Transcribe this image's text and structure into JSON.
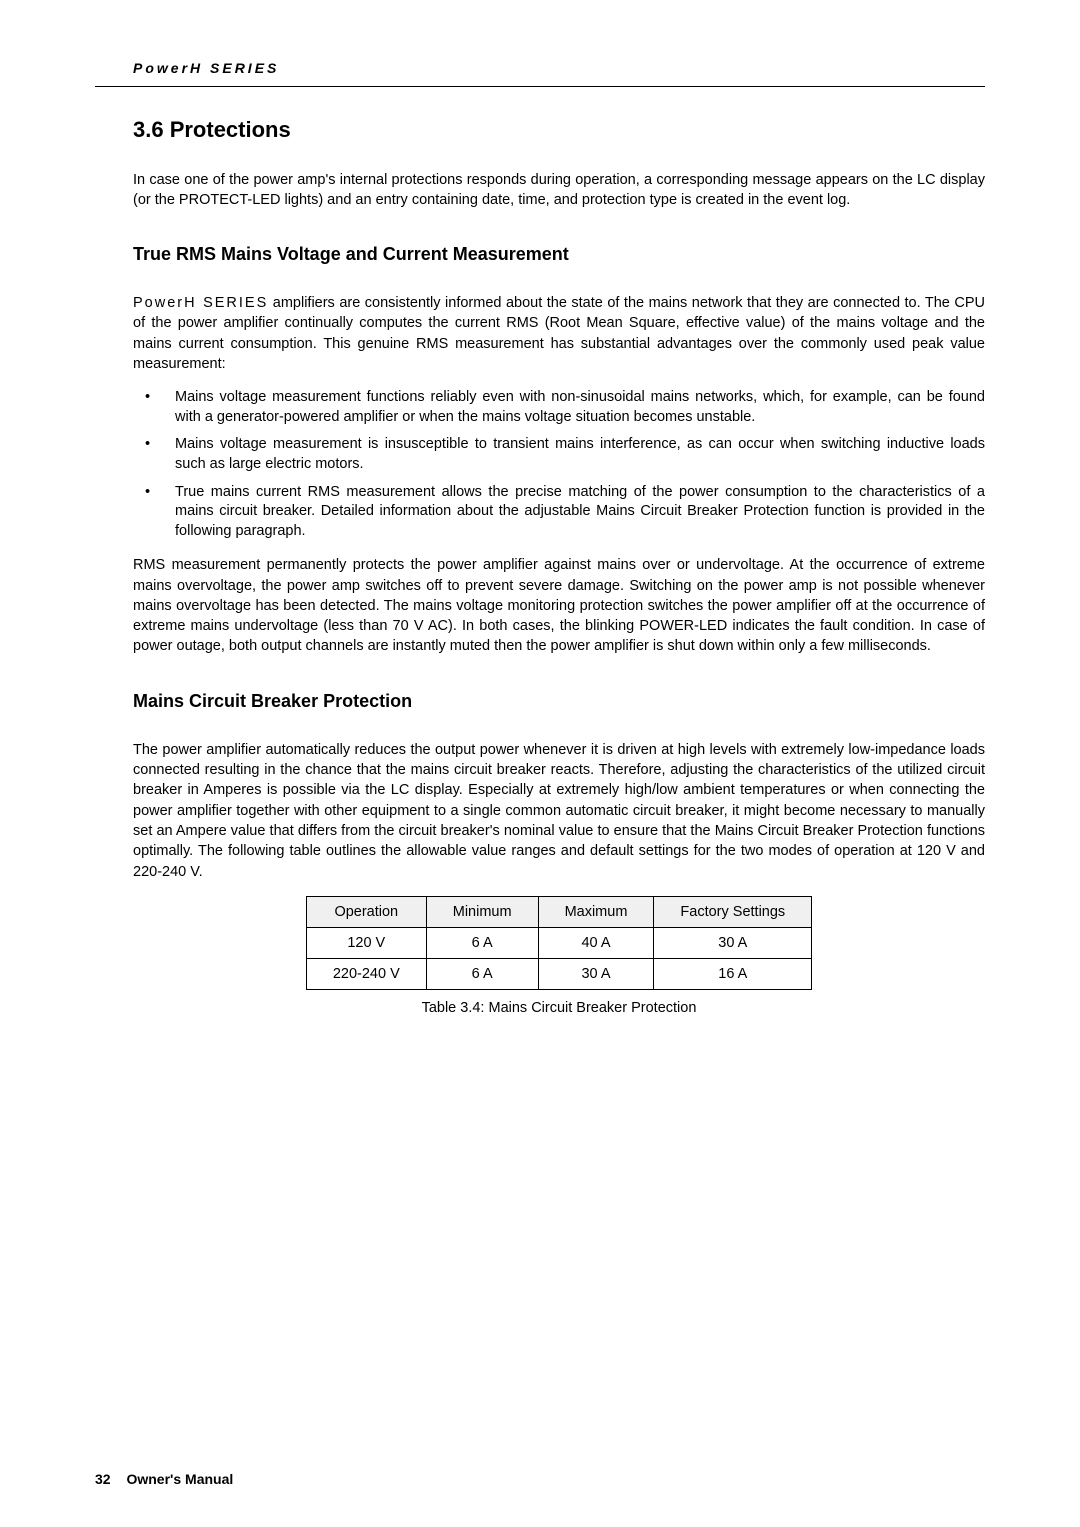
{
  "header": {
    "brand": "PowerH SERIES"
  },
  "section": {
    "title": "3.6 Protections",
    "intro": "In case one of the power amp's internal protections responds during operation, a corresponding message appears on the LC display (or the PROTECT-LED lights) and an entry containing date, time, and protection type is created in the event log."
  },
  "rms": {
    "title": "True RMS Mains Voltage and Current Measurement",
    "para1_prefix": "PowerH SERIES",
    "para1_rest": " amplifiers are consistently informed about the state of the mains network that they are connected to. The CPU of the power amplifier continually computes the current RMS (Root Mean Square, effective value) of the mains voltage and the mains current consumption. This genuine RMS measurement has substantial advantages over the commonly used peak value measurement:",
    "bullets": {
      "b1": "Mains voltage measurement functions reliably even with non-sinusoidal mains networks, which, for example, can be found with a generator-powered amplifier or when the mains voltage situation becomes unstable.",
      "b2": "Mains voltage measurement is insusceptible to transient mains interference, as can occur when switching inductive loads such as large electric motors.",
      "b3": "True mains current RMS measurement allows the precise matching of the power consumption to the characteristics of a mains circuit breaker. Detailed information about the adjustable Mains Circuit Breaker Protection function is provided in the following paragraph."
    },
    "para2": "RMS measurement permanently protects the power amplifier against mains over or undervoltage. At the occurrence of extreme mains overvoltage, the power amp switches off to prevent severe damage. Switching on the power amp is not possible whenever mains overvoltage has been detected. The mains voltage monitoring protection switches the power amplifier off at the occurrence of extreme mains undervoltage (less than 70 V AC). In both cases, the blinking POWER-LED indicates the fault condition. In case of power outage, both output channels are instantly muted then the power amplifier is shut down within only a few milliseconds."
  },
  "breaker": {
    "title": "Mains Circuit Breaker Protection",
    "para": "The power amplifier automatically reduces the output power whenever it is driven at high levels with extremely low-impedance loads connected resulting in the chance that the mains circuit breaker reacts. Therefore, adjusting the characteristics of the utilized circuit breaker in Amperes is possible via the LC display. Especially at extremely high/low ambient temperatures or when connecting the power amplifier together with other equipment to a single common automatic circuit breaker, it might become necessary to manually set an Ampere value that differs from the circuit breaker's nominal value to ensure that the Mains Circuit Breaker Protection functions optimally. The following table outlines the allowable value ranges and default settings for the two modes of operation at 120 V and 220-240 V.",
    "table": {
      "headers": {
        "c1": "Operation",
        "c2": "Minimum",
        "c3": "Maximum",
        "c4": "Factory Settings"
      },
      "rows": {
        "r1": {
          "c1": "120 V",
          "c2": "6 A",
          "c3": "40 A",
          "c4": "30 A"
        },
        "r2": {
          "c1": "220-240 V",
          "c2": "6 A",
          "c3": "30 A",
          "c4": "16 A"
        }
      },
      "caption": "Table 3.4: Mains Circuit Breaker Protection"
    }
  },
  "footer": {
    "page": "32",
    "label": "Owner's Manual"
  }
}
